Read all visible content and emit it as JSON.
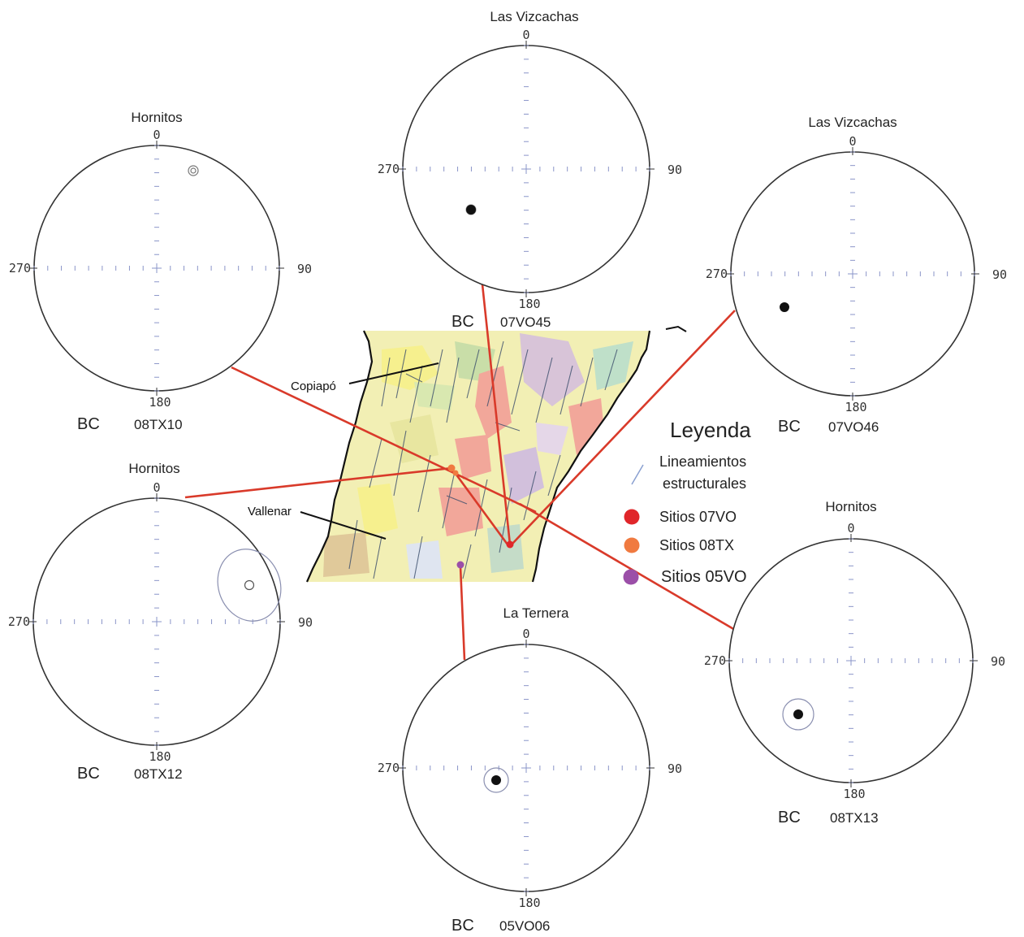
{
  "stereonets": [
    {
      "id": "08TX10",
      "location": "Hornitos",
      "n": "0",
      "e": "90",
      "s": "180",
      "w": "270",
      "bc": "BC",
      "code": "08TX10"
    },
    {
      "id": "07VO45",
      "location": "Las Vizcachas",
      "n": "0",
      "e": "90",
      "s": "180",
      "w": "270",
      "bc": "BC",
      "code": "07VO45"
    },
    {
      "id": "07VO46",
      "location": "Las Vizcachas",
      "n": "0",
      "e": "90",
      "s": "180",
      "w": "270",
      "bc": "BC",
      "code": "07VO46"
    },
    {
      "id": "08TX12",
      "location": "Hornitos",
      "n": "0",
      "e": "90",
      "s": "180",
      "w": "270",
      "bc": "BC",
      "code": "08TX12"
    },
    {
      "id": "05VO06",
      "location": "La Ternera",
      "n": "0",
      "e": "90",
      "s": "180",
      "w": "270",
      "bc": "BC",
      "code": "05VO06"
    },
    {
      "id": "08TX13",
      "location": "Hornitos",
      "n": "0",
      "e": "90",
      "s": "180",
      "w": "270",
      "bc": "BC",
      "code": "08TX13"
    }
  ],
  "map": {
    "towns": [
      "Copiapó",
      "Vallenar"
    ]
  },
  "legend": {
    "title": "Leyenda",
    "items": [
      {
        "label_line1": "Lineamientos",
        "label_line2": "estructurales",
        "color": "#8aa0d0",
        "icon": "line-icon"
      },
      {
        "label": "Sitios 07VO",
        "color": "#e0262a",
        "icon": "dot-icon"
      },
      {
        "label": "Sitios 08TX",
        "color": "#f07a40",
        "icon": "dot-icon"
      },
      {
        "label": "Sitios 05VO",
        "color": "#9b4fa8",
        "icon": "dot-icon"
      }
    ]
  },
  "colors": {
    "connector": "#d93a2a",
    "net_outline": "#333333",
    "net_grid": "#8a94c8",
    "mean_fill": "#111111",
    "cone": "#8a8fb0"
  }
}
